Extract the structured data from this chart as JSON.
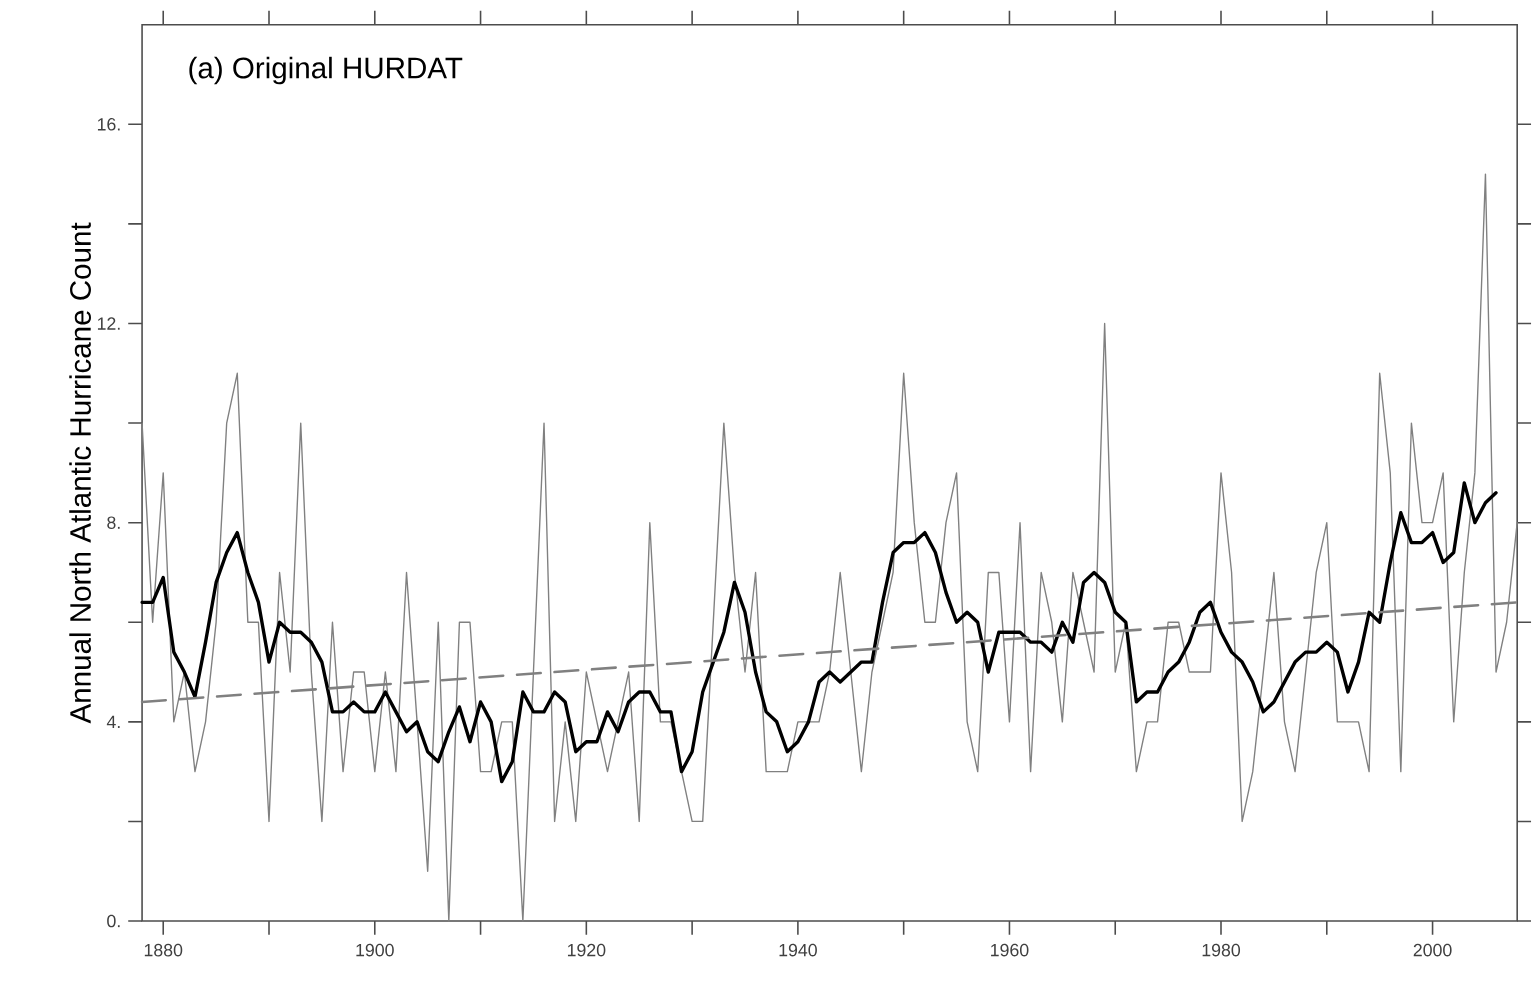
{
  "chart_data": {
    "type": "line",
    "title": "(a) Original HURDAT",
    "ylabel": "Annual North Atlantic Hurricane Count",
    "xlim": [
      1878,
      2008
    ],
    "ylim": [
      0,
      18
    ],
    "xticks": [
      1880,
      {
        "value": 1890,
        "label": null
      },
      1900,
      {
        "value": 1910,
        "label": null
      },
      1920,
      {
        "value": 1930,
        "label": null
      },
      1940,
      {
        "value": 1950,
        "label": null
      },
      1960,
      {
        "value": 1970,
        "label": null
      },
      1980,
      {
        "value": 1990,
        "label": null
      },
      2000
    ],
    "yticks": [
      {
        "value": 0,
        "label": "0."
      },
      {
        "value": 2,
        "label": null
      },
      {
        "value": 4,
        "label": "4."
      },
      {
        "value": 6,
        "label": null
      },
      {
        "value": 8,
        "label": "8."
      },
      {
        "value": 10,
        "label": null
      },
      {
        "value": 12,
        "label": "12."
      },
      {
        "value": 14,
        "label": null
      },
      {
        "value": 16,
        "label": "16."
      }
    ],
    "marker": "none",
    "series": [
      {
        "color": "#808080",
        "line_style": "solid",
        "x": [
          1878,
          1879,
          1880,
          1881,
          1882,
          1883,
          1884,
          1885,
          1886,
          1887,
          1888,
          1889,
          1890,
          1891,
          1892,
          1893,
          1894,
          1895,
          1896,
          1897,
          1898,
          1899,
          1900,
          1901,
          1902,
          1903,
          1904,
          1905,
          1906,
          1907,
          1908,
          1909,
          1910,
          1911,
          1912,
          1913,
          1914,
          1915,
          1916,
          1917,
          1918,
          1919,
          1920,
          1921,
          1922,
          1923,
          1924,
          1925,
          1926,
          1927,
          1928,
          1929,
          1930,
          1931,
          1932,
          1933,
          1934,
          1935,
          1936,
          1937,
          1938,
          1939,
          1940,
          1941,
          1942,
          1943,
          1944,
          1945,
          1946,
          1947,
          1948,
          1949,
          1950,
          1951,
          1952,
          1953,
          1954,
          1955,
          1956,
          1957,
          1958,
          1959,
          1960,
          1961,
          1962,
          1963,
          1964,
          1965,
          1966,
          1967,
          1968,
          1969,
          1970,
          1971,
          1972,
          1973,
          1974,
          1975,
          1976,
          1977,
          1978,
          1979,
          1980,
          1981,
          1982,
          1983,
          1984,
          1985,
          1986,
          1987,
          1988,
          1989,
          1990,
          1991,
          1992,
          1993,
          1994,
          1995,
          1996,
          1997,
          1998,
          1999,
          2000,
          2001,
          2002,
          2003,
          2004,
          2005,
          2006,
          2007,
          2008
        ],
        "values": [
          10,
          6,
          9,
          4,
          5,
          3,
          4,
          6,
          10,
          11,
          6,
          6,
          2,
          7,
          5,
          10,
          5,
          2,
          6,
          3,
          5,
          5,
          3,
          5,
          3,
          7,
          4,
          1,
          6,
          0,
          6,
          6,
          3,
          3,
          4,
          4,
          0,
          5,
          10,
          2,
          4,
          2,
          5,
          4,
          3,
          4,
          5,
          2,
          8,
          4,
          4,
          3,
          2,
          2,
          6,
          10,
          7,
          5,
          7,
          3,
          3,
          3,
          4,
          4,
          4,
          5,
          7,
          5,
          3,
          5,
          6,
          7,
          11,
          8,
          6,
          6,
          8,
          9,
          4,
          3,
          7,
          7,
          4,
          8,
          3,
          7,
          6,
          4,
          7,
          6,
          5,
          12,
          5,
          6,
          3,
          4,
          4,
          6,
          6,
          5,
          5,
          5,
          9,
          7,
          2,
          3,
          5,
          7,
          4,
          3,
          5,
          7,
          8,
          4,
          4,
          4,
          3,
          11,
          9,
          3,
          10,
          8,
          8,
          9,
          4,
          7,
          9,
          15,
          5,
          6,
          8
        ]
      },
      {
        "color": "#000000",
        "line_style": "solid",
        "x": [
          1878,
          1879,
          1880,
          1881,
          1882,
          1883,
          1884,
          1885,
          1886,
          1887,
          1888,
          1889,
          1890,
          1891,
          1892,
          1893,
          1894,
          1895,
          1896,
          1897,
          1898,
          1899,
          1900,
          1901,
          1902,
          1903,
          1904,
          1905,
          1906,
          1907,
          1908,
          1909,
          1910,
          1911,
          1912,
          1913,
          1914,
          1915,
          1916,
          1917,
          1918,
          1919,
          1920,
          1921,
          1922,
          1923,
          1924,
          1925,
          1926,
          1927,
          1928,
          1929,
          1930,
          1931,
          1932,
          1933,
          1934,
          1935,
          1936,
          1937,
          1938,
          1939,
          1940,
          1941,
          1942,
          1943,
          1944,
          1945,
          1946,
          1947,
          1948,
          1949,
          1950,
          1951,
          1952,
          1953,
          1954,
          1955,
          1956,
          1957,
          1958,
          1959,
          1960,
          1961,
          1962,
          1963,
          1964,
          1965,
          1966,
          1967,
          1968,
          1969,
          1970,
          1971,
          1972,
          1973,
          1974,
          1975,
          1976,
          1977,
          1978,
          1979,
          1980,
          1981,
          1982,
          1983,
          1984,
          1985,
          1986,
          1987,
          1988,
          1989,
          1990,
          1991,
          1992,
          1993,
          1994,
          1995,
          1996,
          1997,
          1998,
          1999,
          2000,
          2001,
          2002,
          2003,
          2004,
          2005,
          2006
        ],
        "values": [
          6.4,
          6.4,
          6.9,
          5.4,
          5.0,
          4.5,
          5.6,
          6.8,
          7.4,
          7.8,
          7.0,
          6.4,
          5.2,
          6.0,
          5.8,
          5.8,
          5.6,
          5.2,
          4.2,
          4.2,
          4.4,
          4.2,
          4.2,
          4.6,
          4.2,
          3.8,
          4.0,
          3.4,
          3.2,
          3.8,
          4.3,
          3.6,
          4.4,
          4.0,
          2.8,
          3.2,
          4.6,
          4.2,
          4.2,
          4.6,
          4.4,
          3.4,
          3.6,
          3.6,
          4.2,
          3.8,
          4.4,
          4.6,
          4.6,
          4.2,
          4.2,
          3.0,
          3.4,
          4.6,
          5.2,
          5.8,
          6.8,
          6.2,
          5.0,
          4.2,
          4.0,
          3.4,
          3.6,
          4.0,
          4.8,
          5.0,
          4.8,
          5.0,
          5.2,
          5.2,
          6.4,
          7.4,
          7.6,
          7.6,
          7.8,
          7.4,
          6.6,
          6.0,
          6.2,
          6.0,
          5.0,
          5.8,
          5.8,
          5.8,
          5.6,
          5.6,
          5.4,
          6.0,
          5.6,
          6.8,
          7.0,
          6.8,
          6.2,
          6.0,
          4.4,
          4.6,
          4.6,
          5.0,
          5.2,
          5.6,
          6.2,
          6.4,
          5.8,
          5.4,
          5.2,
          4.8,
          4.2,
          4.4,
          4.8,
          5.2,
          5.4,
          5.4,
          5.6,
          5.4,
          4.6,
          5.2,
          6.2,
          6.0,
          7.2,
          8.2,
          7.6,
          7.6,
          7.8,
          7.2,
          7.4,
          8.8,
          8.0,
          8.4,
          8.6
        ]
      },
      {
        "color": "#808080",
        "line_style": "dashed",
        "x": [
          1878,
          2008
        ],
        "values": [
          4.4,
          6.4
        ]
      }
    ]
  }
}
